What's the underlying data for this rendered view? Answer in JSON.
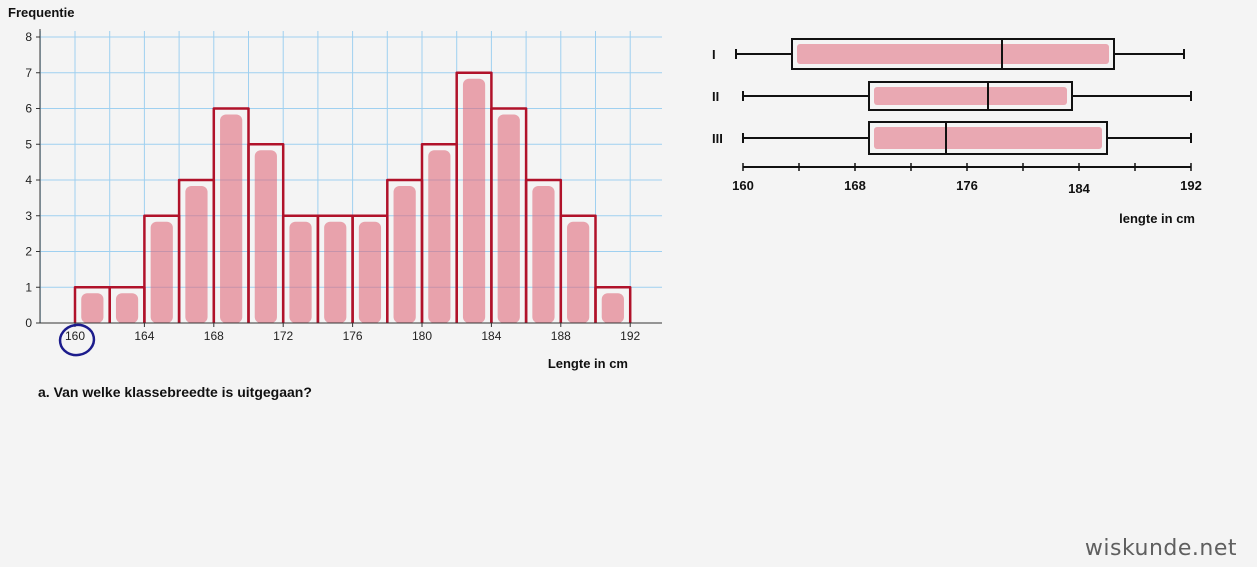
{
  "chart_data": [
    {
      "type": "bar",
      "ylabel": "Frequentie",
      "xlabel": "Lengte in cm",
      "bin_width": 2,
      "x_start": 160,
      "xlim": [
        158,
        194
      ],
      "ylim": [
        0,
        8
      ],
      "yticks": [
        0,
        1,
        2,
        3,
        4,
        5,
        6,
        7,
        8
      ],
      "xticks": [
        160,
        164,
        168,
        172,
        176,
        180,
        184,
        188,
        192
      ],
      "values": [
        1,
        1,
        3,
        4,
        6,
        5,
        3,
        3,
        3,
        4,
        5,
        7,
        6,
        4,
        3,
        1
      ],
      "grid": true
    },
    {
      "type": "boxplot",
      "xlabel": "lengte in cm",
      "xlim": [
        160,
        192
      ],
      "xticks": [
        160,
        168,
        176,
        184,
        192
      ],
      "series": [
        {
          "name": "I",
          "min": 159.5,
          "q1": 163.5,
          "median": 178.5,
          "q3": 186.5,
          "max": 191.5
        },
        {
          "name": "II",
          "min": 160,
          "q1": 169,
          "median": 177.5,
          "q3": 183.5,
          "max": 192
        },
        {
          "name": "III",
          "min": 160,
          "q1": 169,
          "median": 174.5,
          "q3": 186,
          "max": 192
        }
      ]
    }
  ],
  "question": "a. Van welke klassebreedte is uitgegaan?",
  "watermark": "wiskunde.net",
  "colors": {
    "bar_outline": "#b0122a",
    "bar_fill": "#e06a7c",
    "grid": "#9fd0f0",
    "circle": "#1c1c8c"
  }
}
